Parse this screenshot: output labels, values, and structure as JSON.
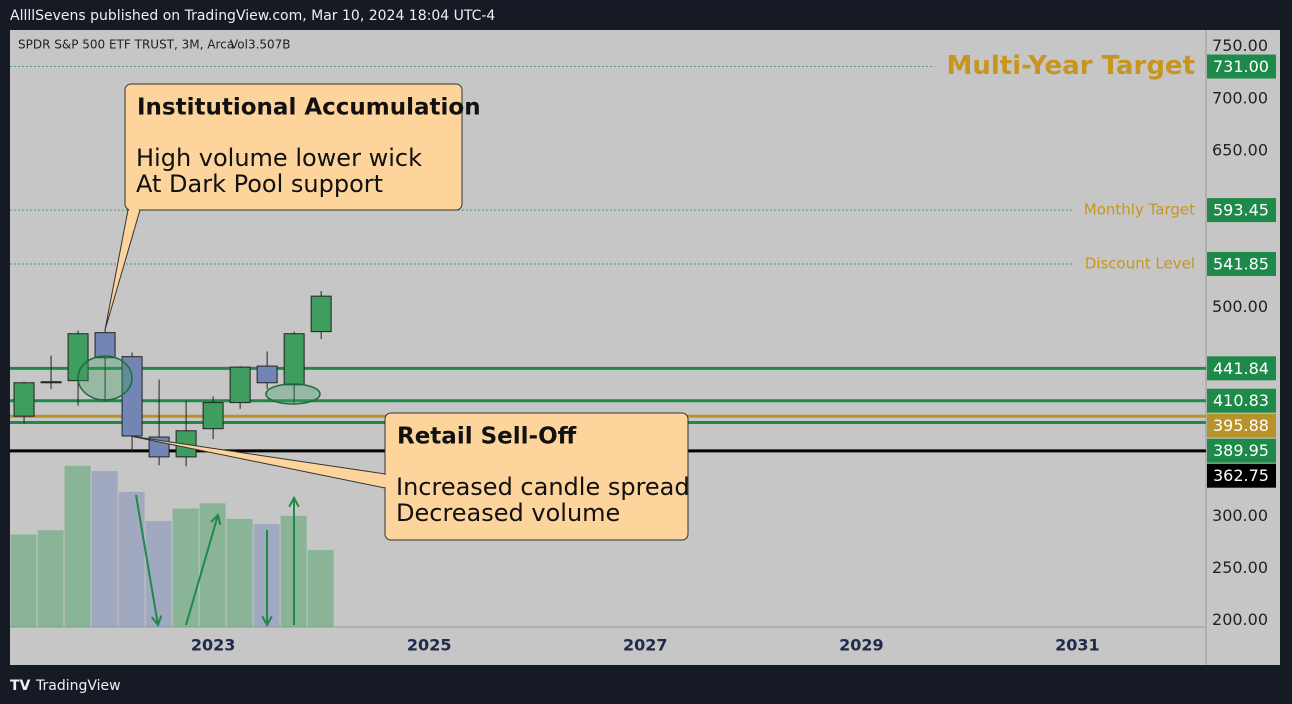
{
  "header": "AllllSevens published on TradingView.com, Mar 10, 2024 18:04 UTC-4",
  "footer": "TradingView",
  "chart_data": {
    "type": "candlestick",
    "title": "SPDR S&P 500 ETF TRUST, 3M, Arca",
    "volume_label": "Vol3.507B",
    "x": [
      2021.25,
      2021.5,
      2021.75,
      2022.0,
      2022.25,
      2022.5,
      2022.75,
      2023.0,
      2023.25,
      2023.5,
      2023.75,
      2024.0
    ],
    "open": [
      396,
      428,
      430,
      476,
      453,
      376,
      357,
      384,
      409,
      444,
      426,
      477
    ],
    "high": [
      429,
      454,
      478,
      479,
      457,
      431,
      411,
      415,
      444,
      458,
      477,
      516
    ],
    "low": [
      389,
      422,
      406,
      410,
      362,
      349,
      348,
      374,
      403,
      422,
      409,
      470
    ],
    "close": [
      428,
      429,
      475,
      452,
      377,
      357,
      382,
      409,
      443,
      428,
      475,
      511
    ],
    "volume": [
      4.22,
      4.41,
      7.35,
      7.11,
      6.16,
      4.83,
      5.4,
      5.64,
      4.93,
      4.69,
      5.07,
      3.507
    ],
    "up_color": "#3f9d5f",
    "down_color": "#7285b5",
    "xlim": [
      2021.12,
      2032.19
    ],
    "xticks": [
      2023,
      2025,
      2027,
      2029,
      2031
    ],
    "ylim": [
      194,
      766
    ],
    "yticks": [
      {
        "value": 200,
        "label": "200.00"
      },
      {
        "value": 250,
        "label": "250.00"
      },
      {
        "value": 300,
        "label": "300.00"
      },
      {
        "value": 500,
        "label": "500.00"
      },
      {
        "value": 650,
        "label": "650.00"
      },
      {
        "value": 700,
        "label": "700.00"
      },
      {
        "value": 750,
        "label": "750.00"
      }
    ],
    "levels": [
      {
        "value": 731,
        "label": "731.00",
        "name": "Multi-Year Target",
        "color": "#1e8a4a",
        "text_color": "#c8961e",
        "style": "dotted"
      },
      {
        "value": 593.45,
        "label": "593.45",
        "name": "Monthly Target",
        "color": "#1e8a4a",
        "text_color": "#c8961e",
        "style": "dotted"
      },
      {
        "value": 541.85,
        "label": "541.85",
        "name": "Discount Level",
        "color": "#1e8a4a",
        "text_color": "#c8961e",
        "style": "dotted"
      },
      {
        "value": 441.84,
        "label": "441.84",
        "color": "#1e8a4a",
        "style": "solid"
      },
      {
        "value": 410.83,
        "label": "410.83",
        "color": "#1e8a4a",
        "style": "solid"
      },
      {
        "value": 395.88,
        "label": "395.88",
        "color": "#b8922a",
        "style": "solid"
      },
      {
        "value": 389.95,
        "label": "389.95",
        "color": "#1e8a4a",
        "style": "solid"
      },
      {
        "value": 362.75,
        "label": "362.75",
        "color": "#000000",
        "style": "solid"
      }
    ],
    "annotations": [
      {
        "title": "Institutional Accumulation",
        "lines": [
          "High volume lower wick",
          "At Dark Pool support"
        ]
      },
      {
        "title": "Retail Sell-Off",
        "lines": [
          "Increased candle spread",
          "Decreased volume"
        ]
      }
    ]
  }
}
